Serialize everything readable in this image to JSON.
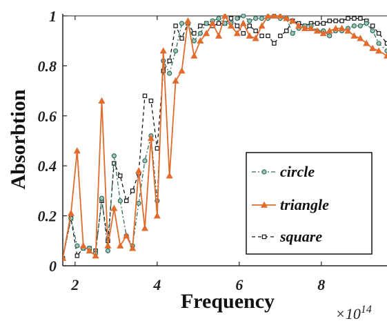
{
  "chart_data": {
    "type": "line",
    "xlabel": "Frequency",
    "ylabel": "Absorbtion",
    "x_multiplier_label": "×10",
    "x_multiplier_exp": "14",
    "xlim": [
      1.7,
      9.6
    ],
    "ylim": [
      0,
      1
    ],
    "xticks": [
      2,
      4,
      6,
      8
    ],
    "yticks": [
      0,
      0.2,
      0.4,
      0.6,
      0.8,
      1
    ],
    "ytick_labels": [
      "0",
      "0.2",
      "0.4",
      "0.6",
      "0.8",
      "1"
    ],
    "legend_position": "lower-right",
    "grid": false,
    "series": [
      {
        "name": "circle",
        "color": "#2e6b5e",
        "dash": "6,3,2,3",
        "marker": "circle",
        "x": [
          1.7,
          1.9,
          2.05,
          2.2,
          2.35,
          2.5,
          2.65,
          2.8,
          2.95,
          3.1,
          3.25,
          3.4,
          3.55,
          3.7,
          3.85,
          4.0,
          4.15,
          4.3,
          4.45,
          4.6,
          4.75,
          4.9,
          5.05,
          5.2,
          5.35,
          5.5,
          5.65,
          5.8,
          5.95,
          6.1,
          6.25,
          6.4,
          6.55,
          6.7,
          6.85,
          7.0,
          7.15,
          7.3,
          7.45,
          7.6,
          7.75,
          7.9,
          8.05,
          8.2,
          8.35,
          8.5,
          8.65,
          8.8,
          8.95,
          9.1,
          9.25,
          9.4,
          9.6
        ],
        "y": [
          0.03,
          0.19,
          0.08,
          0.07,
          0.07,
          0.05,
          0.27,
          0.06,
          0.44,
          0.26,
          0.12,
          0.08,
          0.25,
          0.42,
          0.52,
          0.26,
          0.82,
          0.77,
          0.86,
          0.97,
          0.97,
          0.9,
          0.93,
          0.97,
          0.98,
          0.99,
          0.97,
          0.97,
          0.99,
          1.0,
          0.98,
          0.99,
          0.99,
          0.99,
          1.0,
          0.99,
          0.99,
          0.93,
          0.95,
          0.96,
          0.96,
          0.94,
          0.94,
          0.92,
          0.94,
          0.94,
          0.95,
          0.96,
          0.96,
          0.97,
          0.94,
          0.89,
          0.86
        ]
      },
      {
        "name": "triangle",
        "color": "#e26a2c",
        "dash": "",
        "marker": "triangle",
        "x": [
          1.7,
          1.9,
          2.05,
          2.2,
          2.35,
          2.5,
          2.65,
          2.8,
          2.95,
          3.1,
          3.25,
          3.4,
          3.55,
          3.7,
          3.85,
          4.0,
          4.15,
          4.3,
          4.45,
          4.6,
          4.75,
          4.9,
          5.05,
          5.2,
          5.35,
          5.5,
          5.65,
          5.8,
          5.95,
          6.1,
          6.25,
          6.4,
          6.55,
          6.7,
          6.85,
          7.0,
          7.15,
          7.3,
          7.45,
          7.6,
          7.75,
          7.9,
          8.05,
          8.2,
          8.35,
          8.5,
          8.65,
          8.8,
          8.95,
          9.1,
          9.25,
          9.4,
          9.6
        ],
        "y": [
          0.03,
          0.21,
          0.46,
          0.08,
          0.06,
          0.04,
          0.66,
          0.08,
          0.23,
          0.08,
          0.12,
          0.07,
          0.38,
          0.15,
          0.51,
          0.2,
          0.86,
          0.36,
          0.74,
          0.78,
          0.98,
          0.84,
          0.9,
          0.93,
          0.97,
          0.92,
          1.0,
          0.96,
          0.93,
          0.97,
          0.92,
          0.91,
          0.96,
          1.0,
          1.0,
          1.0,
          0.99,
          0.98,
          0.96,
          0.95,
          0.95,
          0.94,
          0.93,
          0.94,
          0.95,
          0.95,
          0.94,
          0.92,
          0.91,
          0.89,
          0.87,
          0.86,
          0.84
        ]
      },
      {
        "name": "square",
        "color": "#111111",
        "dash": "5,4",
        "marker": "square",
        "x": [
          1.7,
          1.9,
          2.05,
          2.2,
          2.35,
          2.5,
          2.65,
          2.8,
          2.95,
          3.1,
          3.25,
          3.4,
          3.55,
          3.7,
          3.85,
          4.0,
          4.15,
          4.3,
          4.45,
          4.6,
          4.75,
          4.9,
          5.05,
          5.2,
          5.35,
          5.5,
          5.65,
          5.8,
          5.95,
          6.1,
          6.25,
          6.4,
          6.55,
          6.7,
          6.85,
          7.0,
          7.15,
          7.3,
          7.45,
          7.6,
          7.75,
          7.9,
          8.05,
          8.2,
          8.35,
          8.5,
          8.65,
          8.8,
          8.95,
          9.1,
          9.25,
          9.4,
          9.6
        ],
        "y": [
          0.03,
          0.19,
          0.04,
          0.07,
          0.07,
          0.06,
          0.26,
          0.1,
          0.41,
          0.36,
          0.26,
          0.3,
          0.37,
          0.68,
          0.66,
          0.47,
          0.78,
          0.82,
          0.96,
          0.91,
          0.97,
          0.93,
          0.96,
          0.97,
          0.96,
          0.97,
          0.97,
          0.99,
          0.96,
          0.93,
          0.96,
          0.94,
          0.92,
          0.92,
          0.89,
          0.92,
          0.94,
          0.98,
          0.97,
          0.96,
          0.97,
          0.97,
          0.97,
          0.98,
          0.98,
          0.98,
          0.99,
          0.99,
          0.99,
          0.98,
          0.96,
          0.93,
          0.89
        ]
      }
    ]
  }
}
